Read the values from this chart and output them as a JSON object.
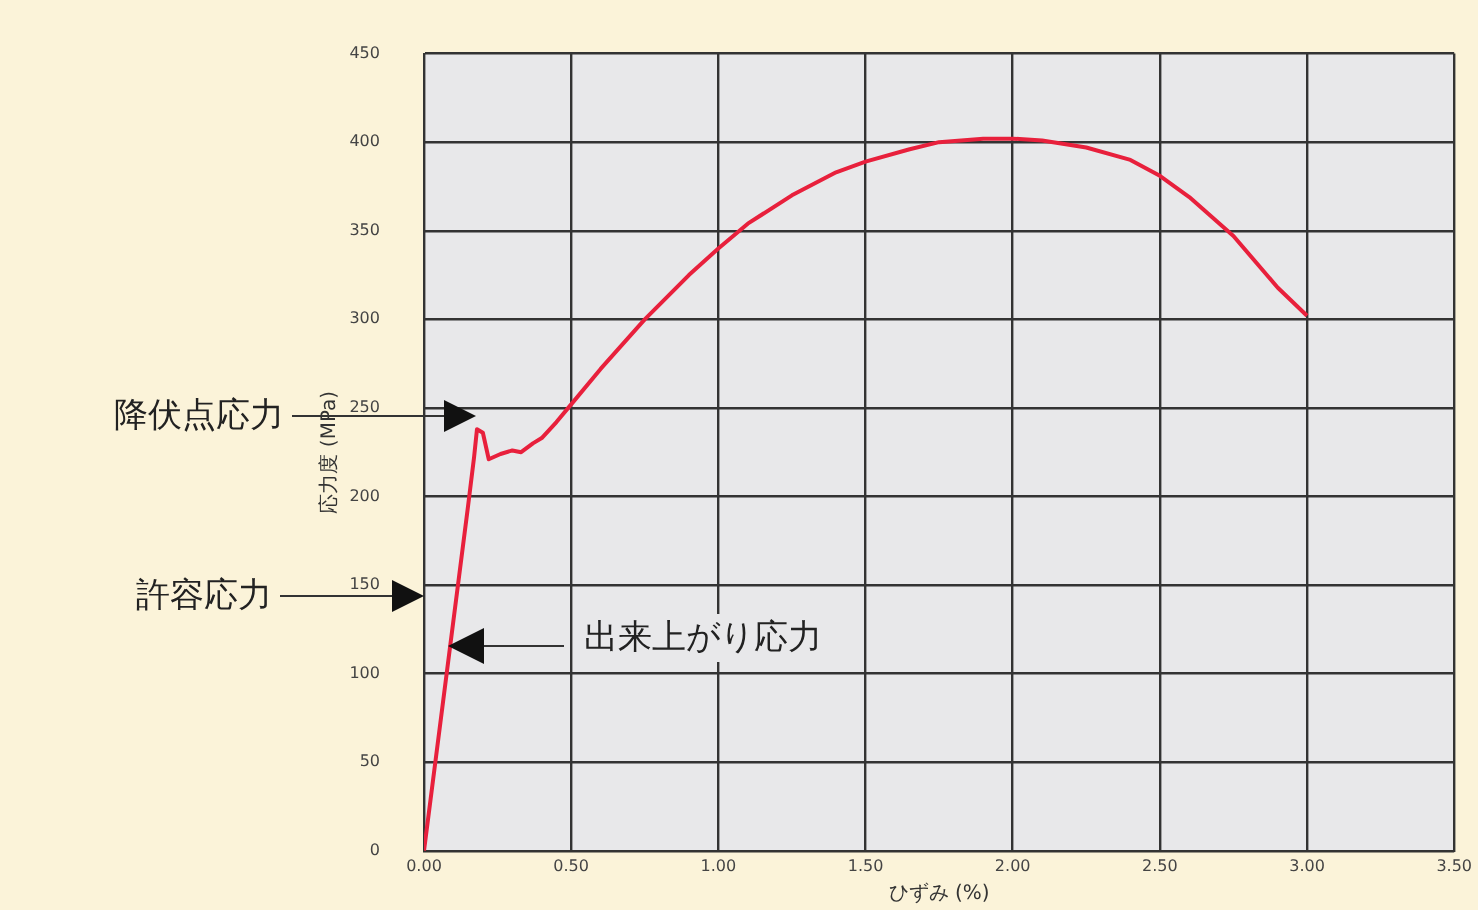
{
  "chart_data": {
    "type": "line",
    "xlabel": "ひずみ (%)",
    "ylabel": "応力度 (MPa)",
    "series": [
      {
        "color": "#e8203c",
        "x": [
          0,
          0.05,
          0.1,
          0.15,
          0.17,
          0.18,
          0.2,
          0.22,
          0.26,
          0.3,
          0.33,
          0.37,
          0.4,
          0.45,
          0.5,
          0.6,
          0.75,
          0.9,
          1.0,
          1.1,
          1.25,
          1.4,
          1.5,
          1.65,
          1.75,
          1.9,
          2.0,
          2.1,
          2.25,
          2.4,
          2.5,
          2.6,
          2.75,
          2.9,
          3.0
        ],
        "values": [
          0,
          65,
          130,
          195,
          222,
          238,
          236,
          221,
          224,
          226,
          225,
          230,
          233,
          242,
          252,
          272,
          300,
          325,
          340,
          354,
          370,
          383,
          389,
          396,
          400,
          402,
          402,
          401,
          397,
          390,
          381,
          369,
          347,
          318,
          302
        ]
      }
    ],
    "xlim": [
      0,
      3.5
    ],
    "xticks": [
      {
        "value": 0,
        "label": "0.00"
      },
      {
        "value": 0.5,
        "label": "0.50"
      },
      {
        "value": 1,
        "label": "1.00"
      },
      {
        "value": 1.5,
        "label": "1.50"
      },
      {
        "value": 2,
        "label": "2.00"
      },
      {
        "value": 2.5,
        "label": "2.50"
      },
      {
        "value": 3,
        "label": "3.00"
      },
      {
        "value": 3.5,
        "label": "3.50"
      }
    ],
    "ylim": [
      0,
      450
    ],
    "yticks": [
      0,
      50,
      100,
      150,
      200,
      250,
      300,
      350,
      400,
      450
    ],
    "grid": true,
    "marker": "none",
    "line_style": "solid",
    "legend": false,
    "annotations": [
      "降伏点応力",
      "許容応力",
      "出来上がり応力"
    ]
  }
}
